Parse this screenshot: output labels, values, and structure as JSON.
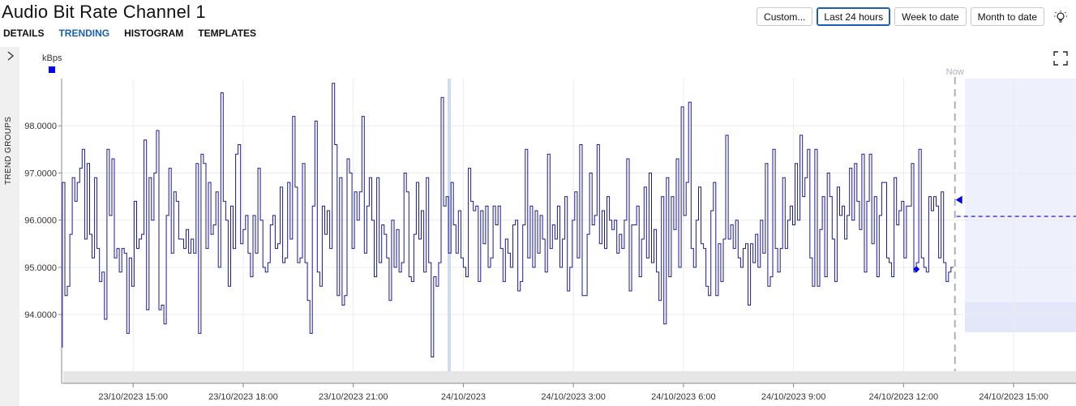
{
  "window": {
    "title": "Audio Bit Rate Channel 1"
  },
  "tabs": [
    {
      "label": "DETAILS"
    },
    {
      "label": "TRENDING",
      "active": true
    },
    {
      "label": "HISTOGRAM"
    },
    {
      "label": "TEMPLATES"
    }
  ],
  "range_buttons": [
    {
      "label": "Custom..."
    },
    {
      "label": "Last 24 hours",
      "active": true
    },
    {
      "label": "Week to date"
    },
    {
      "label": "Month to date"
    }
  ],
  "sidebar": {
    "label": "TREND GROUPS"
  },
  "chart_data": {
    "type": "line",
    "ylabel": "kBps",
    "now_label": "Now",
    "series_color": "#1a1a99",
    "marker_color": "#0000ee",
    "y_ticks": [
      "98.0000",
      "97.0000",
      "96.0000",
      "95.0000",
      "94.0000"
    ],
    "y_tick_values": [
      98,
      97,
      96,
      95,
      94
    ],
    "ylim": [
      92.8,
      99.0
    ],
    "x_tick_labels": [
      "23/10/2023 15:00",
      "23/10/2023 18:00",
      "23/10/2023 21:00",
      "24/10/2023",
      "24/10/2023 3:00",
      "24/10/2023 6:00",
      "24/10/2023 9:00",
      "24/10/2023 12:00",
      "24/10/2023 15:00"
    ],
    "x_tick_hours": [
      15,
      18,
      21,
      24,
      27,
      30,
      33,
      36,
      39
    ],
    "xlim_hours": [
      13.05,
      40.7
    ],
    "now_hour": 37.4,
    "forecast_value": 96.08,
    "current_value": 96.43,
    "low_marker": {
      "hour": 36.35,
      "value": 94.96
    },
    "series_values": [
      96.8,
      94.4,
      94.6,
      95.7,
      96.9,
      96.4,
      96.8,
      97.1,
      97.5,
      95.6,
      97.2,
      95.7,
      95.2,
      96.9,
      95.4,
      94.7,
      94.9,
      93.9,
      97.5,
      96.1,
      97.3,
      95.2,
      95.4,
      94.9,
      95.4,
      95.3,
      93.6,
      95.2,
      94.6,
      96.4,
      95.4,
      95.6,
      95.7,
      97.7,
      94.1,
      96.9,
      96.0,
      97.0,
      97.9,
      94.1,
      94.2,
      93.8,
      96.1,
      97.1,
      95.3,
      96.6,
      96.4,
      95.6,
      95.6,
      95.4,
      95.8,
      95.3,
      95.6,
      95.3,
      97.2,
      93.6,
      97.4,
      97.2,
      95.4,
      96.8,
      95.7,
      95.9,
      96.6,
      95.0,
      98.7,
      96.4,
      96.0,
      94.6,
      96.3,
      95.4,
      97.4,
      97.6,
      95.5,
      95.8,
      96.1,
      95.3,
      94.8,
      96.1,
      95.3,
      97.1,
      96.0,
      95.0,
      94.9,
      95.1,
      95.9,
      96.1,
      95.4,
      95.5,
      96.7,
      95.1,
      95.2,
      96.8,
      95.6,
      98.2,
      96.7,
      95.1,
      95.2,
      97.2,
      95.1,
      94.3,
      93.6,
      96.3,
      98.1,
      94.9,
      94.6,
      96.3,
      95.7,
      96.2,
      95.4,
      98.9,
      97.6,
      94.4,
      96.9,
      94.2,
      94.4,
      97.3,
      97.0,
      95.4,
      96.6,
      96.0,
      96.6,
      98.2,
      95.3,
      96.3,
      96.9,
      96.0,
      94.8,
      96.9,
      95.1,
      95.9,
      95.7,
      95.2,
      94.3,
      96.0,
      95.0,
      95.8,
      94.9,
      95.1,
      97.0,
      96.6,
      94.8,
      94.7,
      95.7,
      96.8,
      95.6,
      96.2,
      94.9,
      96.9,
      95.1,
      93.1,
      94.8,
      94.6,
      95.1,
      98.6,
      96.3,
      96.5,
      95.3,
      96.8,
      95.9,
      95.3,
      96.2,
      95.2,
      95.0,
      94.8,
      97.1,
      96.4,
      96.2,
      96.3,
      94.7,
      96.2,
      95.5,
      96.3,
      95.0,
      95.2,
      96.3,
      95.9,
      96.3,
      95.4,
      94.7,
      95.6,
      95.3,
      95.0,
      95.9,
      96.0,
      94.5,
      94.7,
      95.9,
      97.5,
      95.2,
      96.3,
      95.0,
      96.2,
      95.3,
      96.1,
      95.6,
      94.9,
      97.4,
      95.4,
      95.9,
      95.6,
      96.3,
      95.0,
      95.6,
      96.5,
      94.5,
      95.0,
      96.0,
      96.6,
      95.2,
      97.6,
      94.4,
      94.4,
      95.7,
      97.0,
      95.9,
      96.1,
      97.6,
      95.5,
      96.2,
      95.4,
      96.5,
      96.0,
      95.8,
      96.0,
      95.3,
      95.7,
      95.4,
      96.0,
      97.3,
      94.5,
      95.9,
      95.9,
      96.3,
      94.8,
      95.6,
      96.7,
      95.2,
      97.0,
      95.1,
      95.8,
      94.9,
      94.3,
      96.5,
      93.8,
      96.9,
      94.8,
      96.5,
      95.8,
      97.3,
      95.0,
      98.4,
      96.1,
      96.8,
      98.5,
      95.4,
      95.0,
      96.0,
      96.7,
      95.5,
      95.4,
      94.6,
      94.4,
      96.2,
      96.8,
      94.4,
      95.5,
      94.7,
      95.6,
      97.8,
      95.6,
      95.9,
      95.4,
      96.0,
      95.2,
      95.0,
      95.4,
      95.5,
      94.2,
      95.5,
      95.1,
      95.7,
      95.0,
      96.0,
      95.3,
      97.2,
      94.6,
      94.8,
      97.5,
      95.4,
      94.9,
      95.4,
      96.9,
      95.4,
      96.0,
      96.3,
      95.9,
      97.2,
      96.0,
      97.8,
      96.5,
      96.9,
      97.5,
      95.2,
      94.6,
      97.5,
      94.6,
      95.8,
      96.5,
      94.8,
      97.0,
      96.5,
      95.6,
      94.7,
      96.7,
      96.1,
      96.3,
      95.6,
      96.1,
      97.1,
      96.0,
      97.2,
      96.4,
      95.8,
      97.4,
      94.9,
      96.4,
      97.4,
      95.5,
      96.5,
      94.8,
      96.1,
      96.8,
      96.8,
      95.2,
      95.1,
      94.8,
      96.9,
      95.9,
      96.2,
      96.4,
      95.2,
      96.3,
      96.3,
      97.2,
      94.9,
      95.1,
      97.5,
      95.2,
      95.0,
      94.9,
      96.5,
      96.2,
      96.5,
      96.3,
      95.2,
      96.6,
      95.1,
      94.7,
      94.9,
      95.0
    ]
  }
}
